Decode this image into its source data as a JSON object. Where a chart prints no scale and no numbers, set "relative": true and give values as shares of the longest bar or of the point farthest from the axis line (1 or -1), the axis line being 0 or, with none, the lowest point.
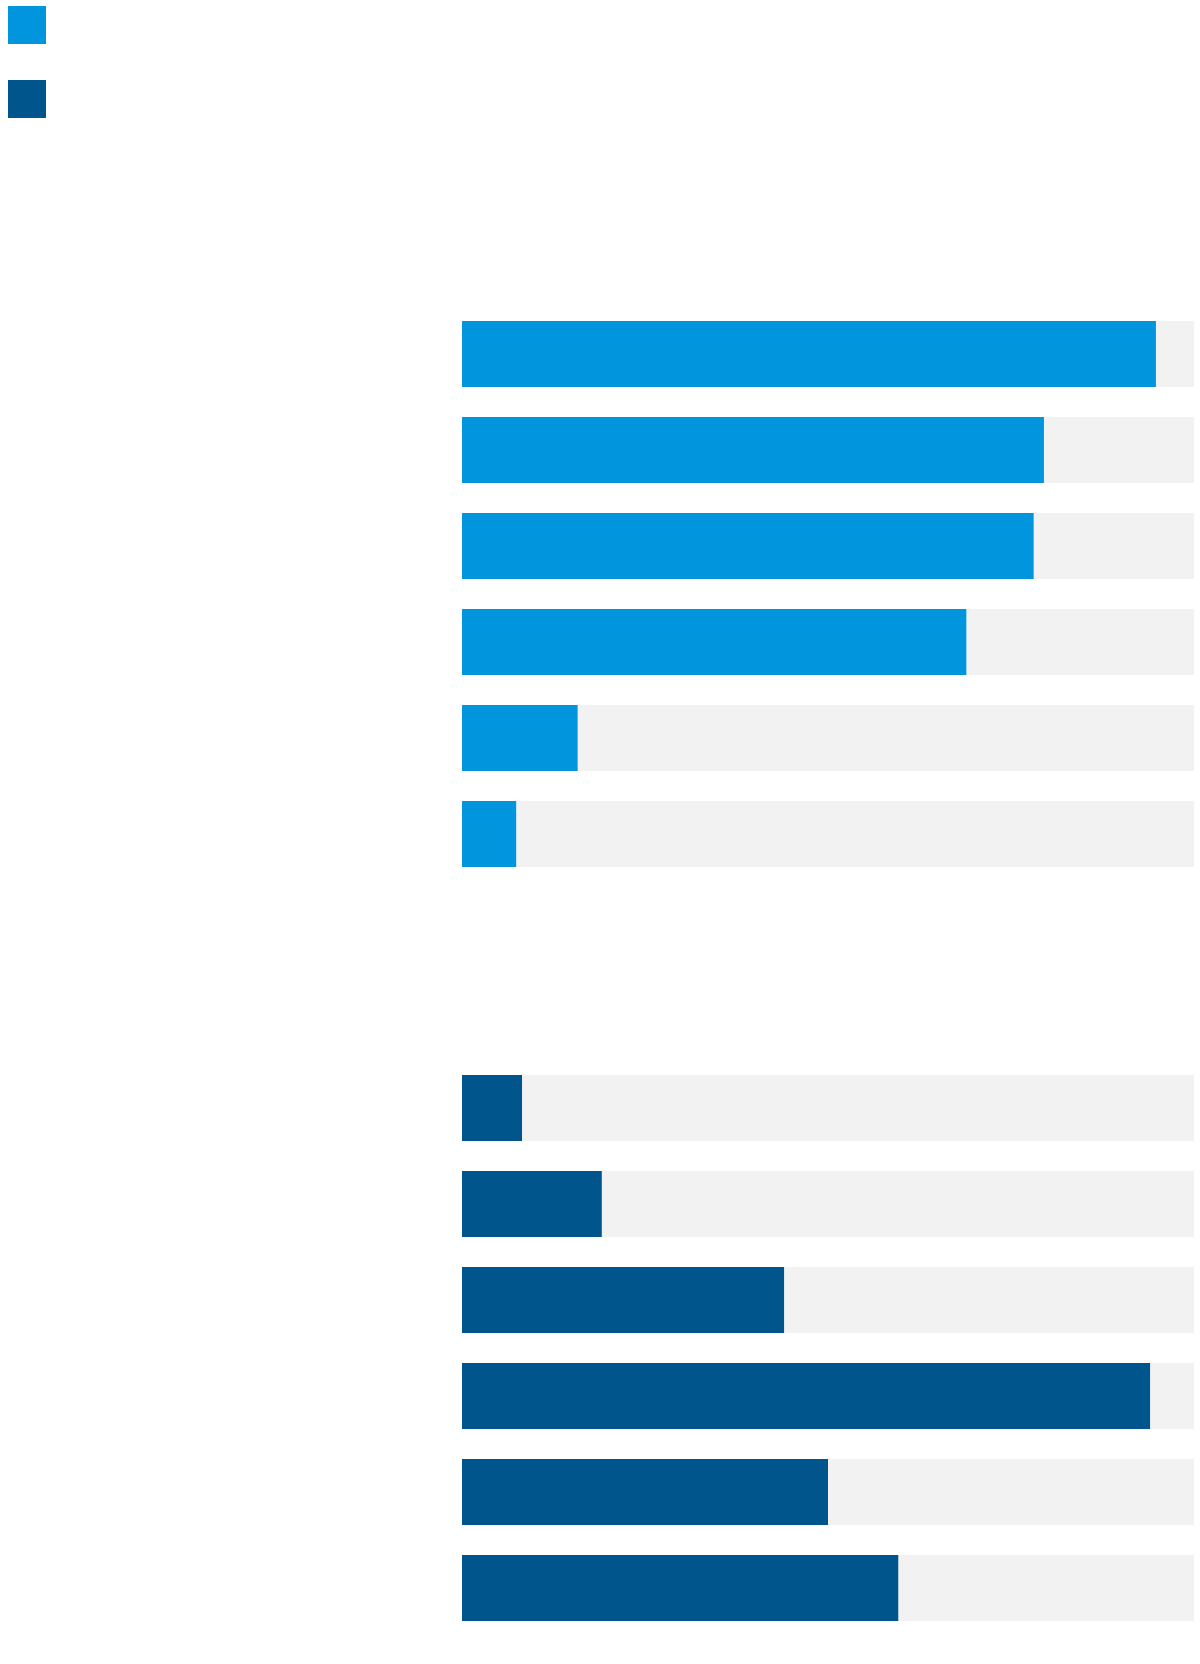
{
  "chart_data": [
    {
      "type": "bar",
      "orientation": "horizontal",
      "relative": true,
      "stacked": true,
      "categories": [
        null,
        null,
        null,
        null,
        null,
        null
      ],
      "series": [
        {
          "color": "#0095dc",
          "values": [
            0.948,
            0.795,
            0.781,
            0.689,
            0.158,
            0.074
          ]
        },
        {
          "color": "#f2f2f2",
          "values": [
            0.052,
            0.205,
            0.219,
            0.311,
            0.842,
            0.926
          ]
        }
      ]
    },
    {
      "type": "bar",
      "orientation": "horizontal",
      "relative": true,
      "stacked": true,
      "categories": [
        null,
        null,
        null,
        null,
        null,
        null
      ],
      "series": [
        {
          "color": "#00568c",
          "values": [
            0.082,
            0.191,
            0.44,
            0.94,
            0.5,
            0.596
          ]
        },
        {
          "color": "#f2f2f2",
          "values": [
            0.918,
            0.809,
            0.56,
            0.06,
            0.5,
            0.404
          ]
        }
      ]
    }
  ]
}
